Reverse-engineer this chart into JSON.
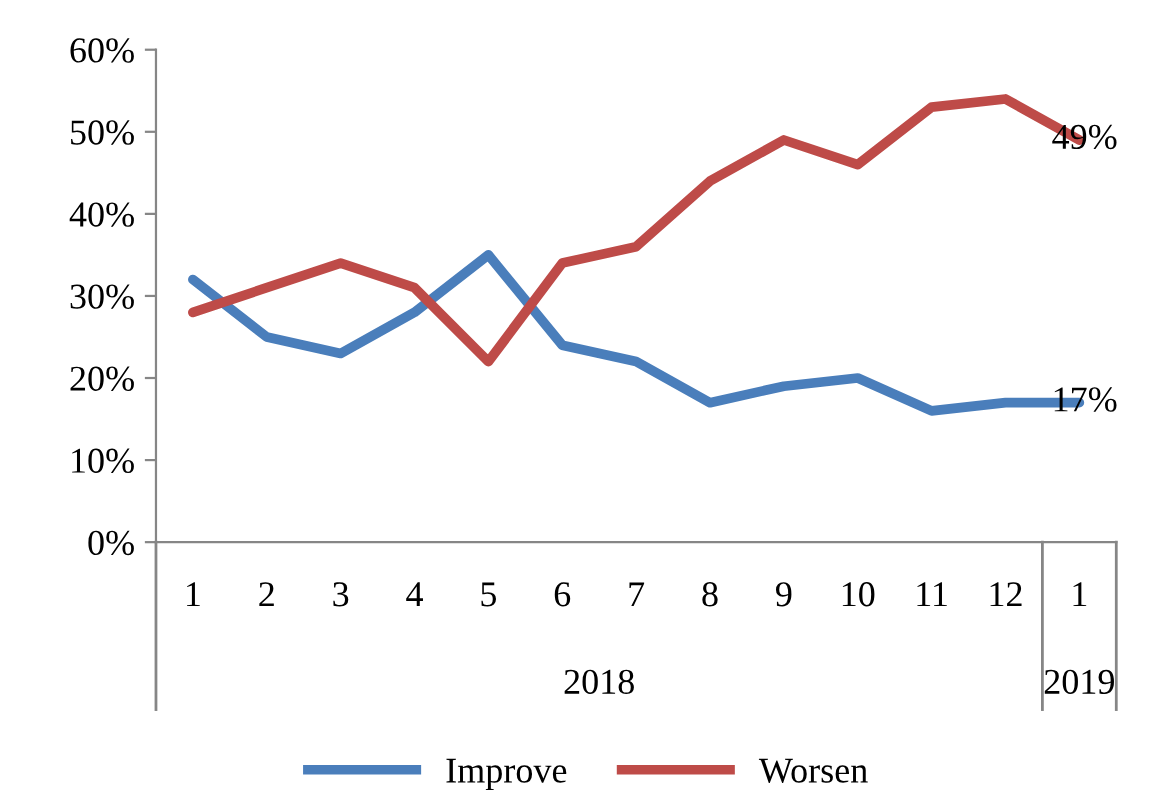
{
  "chart_data": {
    "type": "line",
    "categories": [
      "1",
      "2",
      "3",
      "4",
      "5",
      "6",
      "7",
      "8",
      "9",
      "10",
      "11",
      "12",
      "1"
    ],
    "series": [
      {
        "name": "Improve",
        "color": "#4a7ebb",
        "values": [
          32,
          25,
          23,
          28,
          35,
          24,
          22,
          17,
          19,
          20,
          16,
          17,
          17
        ],
        "value_labels": [
          null,
          null,
          null,
          null,
          null,
          null,
          null,
          null,
          null,
          null,
          null,
          null,
          "17%"
        ]
      },
      {
        "name": "Worsen",
        "color": "#be4b48",
        "values": [
          28,
          31,
          34,
          31,
          22,
          34,
          36,
          44,
          49,
          46,
          53,
          54,
          49
        ],
        "value_labels": [
          null,
          null,
          null,
          null,
          null,
          null,
          null,
          null,
          null,
          null,
          null,
          null,
          "49%"
        ]
      }
    ],
    "ylim": [
      0,
      60
    ],
    "yticks": [
      {
        "value": 0,
        "label": "0%"
      },
      {
        "value": 10,
        "label": "10%"
      },
      {
        "value": 20,
        "label": "20%"
      },
      {
        "value": 30,
        "label": "30%"
      },
      {
        "value": 40,
        "label": "40%"
      },
      {
        "value": 50,
        "label": "50%"
      },
      {
        "value": 60,
        "label": "60%"
      }
    ],
    "annotations": [
      "2018",
      "2019"
    ],
    "grid": false,
    "legend": "bottom",
    "marker": "none",
    "line_style": "solid"
  }
}
